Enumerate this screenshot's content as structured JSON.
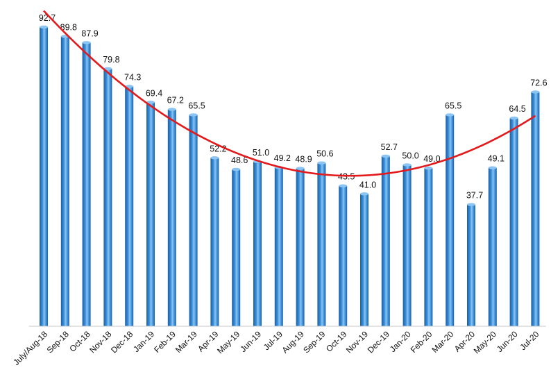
{
  "chart_data": {
    "type": "bar",
    "categories": [
      "July/Aug-18",
      "Sep-18",
      "Oct-18",
      "Nov-18",
      "Dec-18",
      "Jan-19",
      "Feb-19",
      "Mar-19",
      "Apr-19",
      "May-19",
      "Jun-19",
      "Jul-19",
      "Aug-19",
      "Sep-19",
      "Oct-19",
      "Nov-19",
      "Dec-19",
      "Jan-20",
      "Feb-20",
      "Mar-20",
      "Apr-20",
      "May-20",
      "Jun-20",
      "Jul-20"
    ],
    "values": [
      92.7,
      89.8,
      87.9,
      79.8,
      74.3,
      69.4,
      67.2,
      65.5,
      52.2,
      48.6,
      51.0,
      49.2,
      48.9,
      50.6,
      43.5,
      41.0,
      52.7,
      50.0,
      49.0,
      65.5,
      37.7,
      49.1,
      64.5,
      72.6
    ],
    "value_labels": [
      "92.7",
      "89.8",
      "87.9",
      "79.8",
      "74.3",
      "69.4",
      "67.2",
      "65.5",
      "52.2",
      "48.6",
      "51.0",
      "49.2",
      "48.9",
      "50.6",
      "43.5",
      "41.0",
      "52.7",
      "50.0",
      "49.0",
      "65.5",
      "37.7",
      "49.1",
      "64.5",
      "72.6"
    ],
    "ylim": [
      0,
      100
    ],
    "title": "",
    "xlabel": "",
    "ylabel": "",
    "grid": false,
    "legend": "none",
    "trendline": {
      "type": "polynomial",
      "order": 2,
      "color": "#e3191b"
    },
    "colors": {
      "bar": "#3a8fd9",
      "bar_highlight": "#8cc4f2",
      "bar_shadow": "#1d5fa3",
      "axis": "#c8c8c8"
    }
  }
}
